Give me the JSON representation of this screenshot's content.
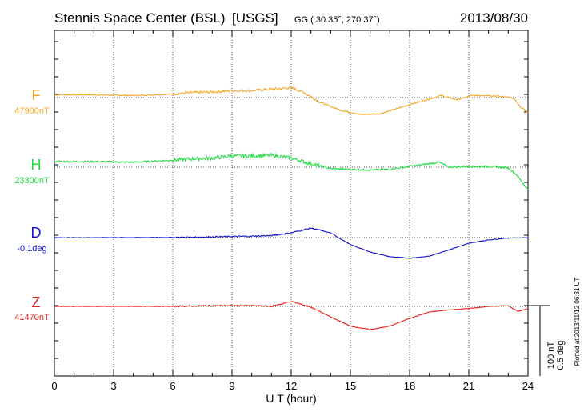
{
  "header": {
    "station": "Stennis Space Center (BSL)",
    "agency": "[USGS]",
    "coords": "GG ( 30.35°, 270.37°)",
    "date": "2013/08/30"
  },
  "footer": {
    "plotted_note": "Plotted at 2013/11/12 06:31  UT"
  },
  "scale": {
    "nt_label": "100 nT",
    "deg_label": "0.5 deg"
  },
  "chart_data": {
    "type": "line",
    "title": "Stennis Space Center (BSL)  [USGS]",
    "xlabel": "U T (hour)",
    "ylabel": "",
    "xlim": [
      0,
      24
    ],
    "x_ticks": [
      0,
      3,
      6,
      9,
      12,
      15,
      18,
      21,
      24
    ],
    "x_tick_labels": [
      "0",
      "3",
      "6",
      "9",
      "12",
      "15",
      "18",
      "21",
      "24"
    ],
    "grid": true,
    "series": [
      {
        "name": "F",
        "baseline_label": "47900nT",
        "baseline_nT": 47900,
        "color": "#f5a623",
        "points": [
          [
            0,
            47904
          ],
          [
            2,
            47904
          ],
          [
            4,
            47903
          ],
          [
            6,
            47905
          ],
          [
            7,
            47907
          ],
          [
            8,
            47908
          ],
          [
            9,
            47910
          ],
          [
            10,
            47910
          ],
          [
            11,
            47912
          ],
          [
            12,
            47914
          ],
          [
            12.6,
            47908
          ],
          [
            13.5,
            47893
          ],
          [
            14.5,
            47882
          ],
          [
            15.5,
            47876
          ],
          [
            16.5,
            47877
          ],
          [
            17.2,
            47883
          ],
          [
            18,
            47890
          ],
          [
            19,
            47898
          ],
          [
            19.6,
            47903
          ],
          [
            20.4,
            47897
          ],
          [
            21.2,
            47903
          ],
          [
            22,
            47903
          ],
          [
            23,
            47901
          ],
          [
            23.3,
            47898
          ],
          [
            23.6,
            47887
          ],
          [
            24,
            47879
          ]
        ]
      },
      {
        "name": "H",
        "baseline_label": "23300nT",
        "baseline_nT": 23300,
        "color": "#22dd44",
        "points": [
          [
            0,
            23308
          ],
          [
            2,
            23308
          ],
          [
            4,
            23307
          ],
          [
            6,
            23310
          ],
          [
            7,
            23312
          ],
          [
            8,
            23313
          ],
          [
            9,
            23316
          ],
          [
            10,
            23316
          ],
          [
            11,
            23317
          ],
          [
            12,
            23313
          ],
          [
            13,
            23305
          ],
          [
            14,
            23298
          ],
          [
            15,
            23297
          ],
          [
            16,
            23296
          ],
          [
            17,
            23297
          ],
          [
            18,
            23301
          ],
          [
            19,
            23305
          ],
          [
            19.5,
            23307
          ],
          [
            20,
            23300
          ],
          [
            21,
            23301
          ],
          [
            22,
            23301
          ],
          [
            23,
            23299
          ],
          [
            23.4,
            23290
          ],
          [
            24,
            23268
          ]
        ]
      },
      {
        "name": "D",
        "baseline_label": "-0.1deg",
        "baseline_deg": -0.1,
        "color": "#1111cc",
        "points": [
          [
            0,
            -0.101
          ],
          [
            3,
            -0.1
          ],
          [
            6,
            -0.099
          ],
          [
            8,
            -0.095
          ],
          [
            10,
            -0.09
          ],
          [
            11,
            -0.086
          ],
          [
            12,
            -0.066
          ],
          [
            13,
            -0.032
          ],
          [
            14,
            -0.067
          ],
          [
            15,
            -0.15
          ],
          [
            16,
            -0.202
          ],
          [
            17,
            -0.236
          ],
          [
            18,
            -0.246
          ],
          [
            19,
            -0.232
          ],
          [
            20,
            -0.186
          ],
          [
            21,
            -0.141
          ],
          [
            22,
            -0.116
          ],
          [
            23,
            -0.103
          ],
          [
            24,
            -0.101
          ]
        ]
      },
      {
        "name": "Z",
        "baseline_label": "41470nT",
        "baseline_nT": 41470,
        "color": "#e81c1c",
        "points": [
          [
            0,
            41470
          ],
          [
            3,
            41470
          ],
          [
            6,
            41470
          ],
          [
            8,
            41471
          ],
          [
            10,
            41471
          ],
          [
            11,
            41470
          ],
          [
            12,
            41477
          ],
          [
            13,
            41469
          ],
          [
            14,
            41455
          ],
          [
            15,
            41442
          ],
          [
            16,
            41437
          ],
          [
            17,
            41442
          ],
          [
            18,
            41453
          ],
          [
            19,
            41462
          ],
          [
            20,
            41465
          ],
          [
            21,
            41467
          ],
          [
            22,
            41470
          ],
          [
            23,
            41471
          ],
          [
            23.5,
            41463
          ],
          [
            24,
            41467
          ]
        ]
      }
    ]
  }
}
